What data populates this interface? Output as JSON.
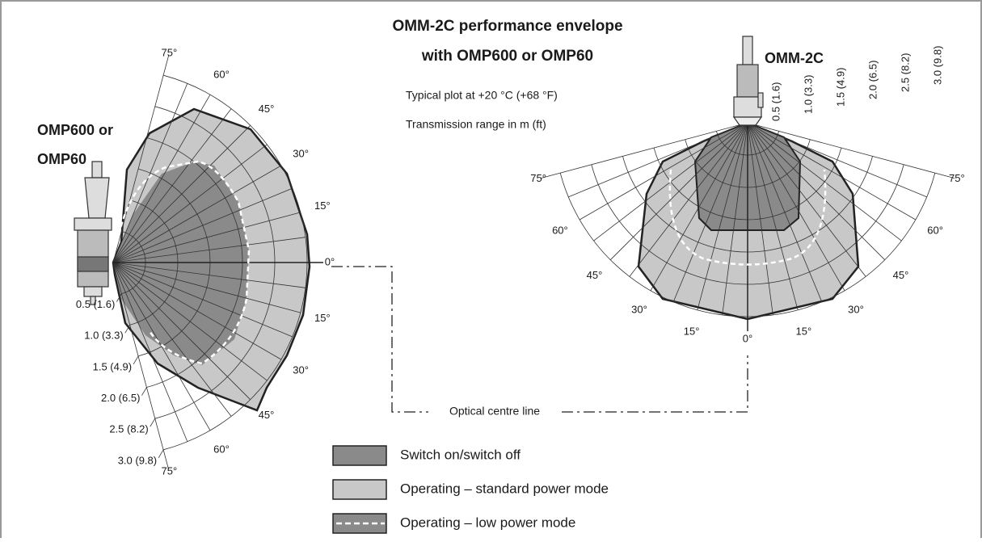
{
  "title": [
    "OMM-2C performance envelope",
    "with OMP600 or OMP60"
  ],
  "notes": [
    "Typical plot at +20 °C (+68 °F)",
    "Transmission range in m (ft)"
  ],
  "left_label": [
    "OMP600 or",
    "OMP60"
  ],
  "right_label": "OMM-2C",
  "range_labels": [
    "0.5 (1.6)",
    "1.0 (3.3)",
    "1.5 (4.9)",
    "2.0 (6.5)",
    "2.5 (8.2)",
    "3.0 (9.8)"
  ],
  "angle_labels": [
    "75°",
    "60°",
    "45°",
    "30°",
    "15°",
    "0°",
    "15°",
    "30°",
    "45°",
    "60°",
    "75°"
  ],
  "centre_line": "Optical centre line",
  "legend": [
    "Switch on/switch off",
    "Operating – standard power mode",
    "Operating – low power mode"
  ]
}
